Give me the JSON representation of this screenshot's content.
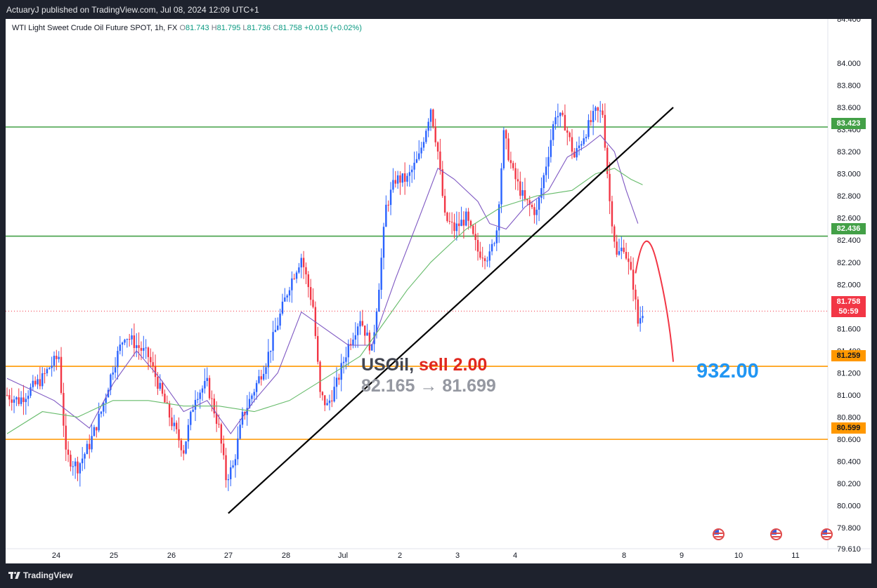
{
  "header": {
    "publish_text": "ActuaryJ published on TradingView.com, Jul 08, 2024 12:09 UTC+1"
  },
  "legend": {
    "symbol_desc": "WTI Light Sweet Crude Oil Future SPOT, 1h, FX",
    "o_label": "O",
    "o_value": "81.743",
    "h_label": "H",
    "h_value": "81.795",
    "l_label": "L",
    "l_value": "81.736",
    "c_label": "C",
    "c_value": "81.758",
    "change": "+0.015 (+0.02%)"
  },
  "trade": {
    "symbol": "USOil",
    "comma": ",",
    "action": "sell 2.00",
    "range": "82.165 → 81.699"
  },
  "pnl_value": "932.00",
  "price_tags": {
    "level_top": "83.423",
    "level_mid": "82.436",
    "current_price": "81.758",
    "countdown": "50:59",
    "level_support": "81.259",
    "level_bottom": "80.599"
  },
  "footer": {
    "brand": "TradingView"
  },
  "colors": {
    "up": "#2962ff",
    "down": "#f23645",
    "resistance": "#43a047",
    "support": "#ff9800",
    "trendline": "#000000",
    "ma_fast": "#7e57c2",
    "ma_slow": "#66bb6a",
    "projection": "#f23645",
    "pnl": "#2196f3"
  },
  "chart_data": {
    "type": "candlestick",
    "symbol": "WTI Light Sweet Crude Oil Future SPOT",
    "timeframe": "1h",
    "ylim": [
      79.61,
      84.4
    ],
    "y_ticks": [
      "84.400",
      "84.000",
      "83.800",
      "83.600",
      "83.400",
      "83.200",
      "83.000",
      "82.800",
      "82.600",
      "82.400",
      "82.200",
      "82.000",
      "81.800",
      "81.600",
      "81.400",
      "81.200",
      "81.000",
      "80.800",
      "80.600",
      "80.400",
      "80.200",
      "80.000",
      "79.800",
      "79.610"
    ],
    "x_ticks": [
      "24",
      "25",
      "26",
      "27",
      "28",
      "Jul",
      "2",
      "3",
      "4",
      "8",
      "9",
      "10",
      "11"
    ],
    "horizontal_levels": [
      {
        "value": 83.423,
        "kind": "resistance"
      },
      {
        "value": 82.436,
        "kind": "resistance"
      },
      {
        "value": 81.259,
        "kind": "support"
      },
      {
        "value": 80.599,
        "kind": "support"
      }
    ],
    "current_price": 81.758,
    "price_path": [
      {
        "x": 0,
        "y": 81.0
      },
      {
        "x": 5,
        "y": 80.95
      },
      {
        "x": 10,
        "y": 81.05
      },
      {
        "x": 15,
        "y": 81.15
      },
      {
        "x": 18,
        "y": 81.25
      },
      {
        "x": 22,
        "y": 81.35
      },
      {
        "x": 25,
        "y": 80.45
      },
      {
        "x": 30,
        "y": 80.35
      },
      {
        "x": 35,
        "y": 80.55
      },
      {
        "x": 40,
        "y": 80.85
      },
      {
        "x": 45,
        "y": 81.25
      },
      {
        "x": 50,
        "y": 81.55
      },
      {
        "x": 55,
        "y": 81.45
      },
      {
        "x": 60,
        "y": 81.35
      },
      {
        "x": 65,
        "y": 81.05
      },
      {
        "x": 70,
        "y": 80.75
      },
      {
        "x": 75,
        "y": 80.5
      },
      {
        "x": 80,
        "y": 81.0
      },
      {
        "x": 85,
        "y": 81.1
      },
      {
        "x": 90,
        "y": 80.7
      },
      {
        "x": 93,
        "y": 80.25
      },
      {
        "x": 96,
        "y": 80.35
      },
      {
        "x": 100,
        "y": 80.8
      },
      {
        "x": 105,
        "y": 81.05
      },
      {
        "x": 110,
        "y": 81.3
      },
      {
        "x": 115,
        "y": 81.65
      },
      {
        "x": 120,
        "y": 82.0
      },
      {
        "x": 125,
        "y": 82.25
      },
      {
        "x": 130,
        "y": 81.8
      },
      {
        "x": 133,
        "y": 81.0
      },
      {
        "x": 136,
        "y": 80.9
      },
      {
        "x": 140,
        "y": 81.1
      },
      {
        "x": 145,
        "y": 81.45
      },
      {
        "x": 150,
        "y": 81.7
      },
      {
        "x": 155,
        "y": 81.4
      },
      {
        "x": 158,
        "y": 82.0
      },
      {
        "x": 161,
        "y": 82.7
      },
      {
        "x": 165,
        "y": 82.95
      },
      {
        "x": 170,
        "y": 82.95
      },
      {
        "x": 175,
        "y": 83.15
      },
      {
        "x": 180,
        "y": 83.6
      },
      {
        "x": 183,
        "y": 83.2
      },
      {
        "x": 186,
        "y": 82.6
      },
      {
        "x": 190,
        "y": 82.5
      },
      {
        "x": 195,
        "y": 82.6
      },
      {
        "x": 200,
        "y": 82.3
      },
      {
        "x": 205,
        "y": 82.25
      },
      {
        "x": 208,
        "y": 82.5
      },
      {
        "x": 211,
        "y": 83.35
      },
      {
        "x": 215,
        "y": 83.0
      },
      {
        "x": 220,
        "y": 82.75
      },
      {
        "x": 225,
        "y": 82.65
      },
      {
        "x": 230,
        "y": 83.2
      },
      {
        "x": 233,
        "y": 83.55
      },
      {
        "x": 237,
        "y": 83.45
      },
      {
        "x": 241,
        "y": 83.15
      },
      {
        "x": 245,
        "y": 83.35
      },
      {
        "x": 250,
        "y": 83.55
      },
      {
        "x": 253,
        "y": 83.55
      },
      {
        "x": 256,
        "y": 82.75
      },
      {
        "x": 259,
        "y": 82.25
      },
      {
        "x": 262,
        "y": 82.35
      },
      {
        "x": 266,
        "y": 82.0
      },
      {
        "x": 268,
        "y": 81.65
      },
      {
        "x": 270,
        "y": 81.758
      }
    ],
    "moving_averages": [
      {
        "name": "",
        "color_key": "ma_fast",
        "values": [
          {
            "x": 0,
            "y": 81.15
          },
          {
            "x": 20,
            "y": 80.95
          },
          {
            "x": 35,
            "y": 80.7
          },
          {
            "x": 45,
            "y": 81.1
          },
          {
            "x": 55,
            "y": 81.4
          },
          {
            "x": 65,
            "y": 81.15
          },
          {
            "x": 75,
            "y": 80.85
          },
          {
            "x": 85,
            "y": 80.95
          },
          {
            "x": 95,
            "y": 80.65
          },
          {
            "x": 105,
            "y": 80.95
          },
          {
            "x": 115,
            "y": 81.2
          },
          {
            "x": 125,
            "y": 81.75
          },
          {
            "x": 135,
            "y": 81.6
          },
          {
            "x": 145,
            "y": 81.45
          },
          {
            "x": 155,
            "y": 81.45
          },
          {
            "x": 165,
            "y": 82.05
          },
          {
            "x": 175,
            "y": 82.6
          },
          {
            "x": 183,
            "y": 83.05
          },
          {
            "x": 190,
            "y": 82.95
          },
          {
            "x": 200,
            "y": 82.75
          },
          {
            "x": 205,
            "y": 82.55
          },
          {
            "x": 212,
            "y": 82.5
          },
          {
            "x": 220,
            "y": 82.7
          },
          {
            "x": 230,
            "y": 82.85
          },
          {
            "x": 238,
            "y": 83.15
          },
          {
            "x": 246,
            "y": 83.25
          },
          {
            "x": 252,
            "y": 83.35
          },
          {
            "x": 258,
            "y": 83.2
          },
          {
            "x": 263,
            "y": 82.85
          },
          {
            "x": 268,
            "y": 82.55
          }
        ]
      },
      {
        "name": "",
        "color_key": "ma_slow",
        "values": [
          {
            "x": 0,
            "y": 80.65
          },
          {
            "x": 15,
            "y": 80.85
          },
          {
            "x": 30,
            "y": 80.8
          },
          {
            "x": 45,
            "y": 80.95
          },
          {
            "x": 60,
            "y": 80.95
          },
          {
            "x": 75,
            "y": 80.9
          },
          {
            "x": 90,
            "y": 80.9
          },
          {
            "x": 105,
            "y": 80.85
          },
          {
            "x": 120,
            "y": 80.95
          },
          {
            "x": 135,
            "y": 81.15
          },
          {
            "x": 150,
            "y": 81.35
          },
          {
            "x": 160,
            "y": 81.65
          },
          {
            "x": 170,
            "y": 81.95
          },
          {
            "x": 180,
            "y": 82.2
          },
          {
            "x": 195,
            "y": 82.5
          },
          {
            "x": 210,
            "y": 82.7
          },
          {
            "x": 225,
            "y": 82.8
          },
          {
            "x": 240,
            "y": 82.85
          },
          {
            "x": 250,
            "y": 83.0
          },
          {
            "x": 258,
            "y": 83.05
          },
          {
            "x": 265,
            "y": 82.95
          },
          {
            "x": 270,
            "y": 82.9
          }
        ]
      }
    ],
    "trendline": [
      {
        "x": 94,
        "y": 79.93
      },
      {
        "x": 283,
        "y": 83.6
      }
    ],
    "projection": [
      {
        "x": 267,
        "y": 82.1
      },
      {
        "x": 271,
        "y": 82.436
      },
      {
        "x": 276,
        "y": 82.2
      },
      {
        "x": 283,
        "y": 81.3
      }
    ]
  }
}
